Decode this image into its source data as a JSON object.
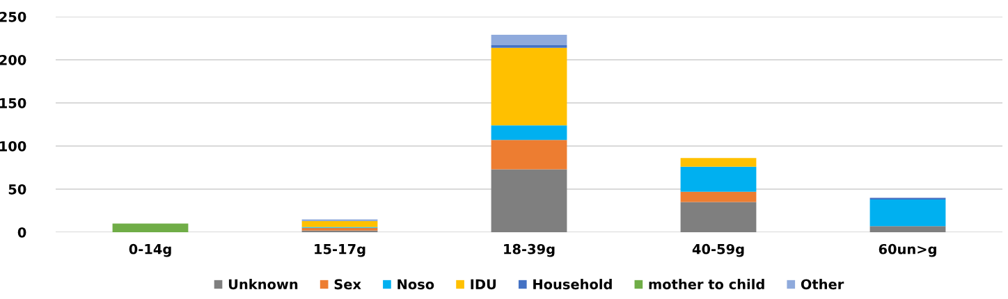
{
  "chart_data": {
    "type": "bar",
    "stacked": true,
    "categories": [
      "0-14g",
      "15-17g",
      "18-39g",
      "40-59g",
      "60un>g"
    ],
    "series": [
      {
        "name": "Unknown",
        "color": "#7f7f7f",
        "values": [
          0,
          2,
          73,
          35,
          7
        ]
      },
      {
        "name": "Sex",
        "color": "#ed7d31",
        "values": [
          0,
          3,
          34,
          12,
          0
        ]
      },
      {
        "name": "Noso",
        "color": "#00b0f0",
        "values": [
          0,
          1,
          17,
          29,
          31
        ]
      },
      {
        "name": "IDU",
        "color": "#ffc000",
        "values": [
          0,
          7,
          90,
          10,
          0
        ]
      },
      {
        "name": "Household",
        "color": "#4472c4",
        "values": [
          0,
          0,
          3,
          0,
          2
        ]
      },
      {
        "name": "mother to child",
        "color": "#70ad47",
        "values": [
          10,
          0,
          0,
          0,
          0
        ]
      },
      {
        "name": "Other",
        "color": "#8faadc",
        "values": [
          0,
          2,
          12,
          0,
          0
        ]
      }
    ],
    "ylim": [
      0,
      250
    ],
    "yticks": [
      0,
      50,
      100,
      150,
      200,
      250
    ],
    "grid": "y",
    "legend": "bottom"
  }
}
